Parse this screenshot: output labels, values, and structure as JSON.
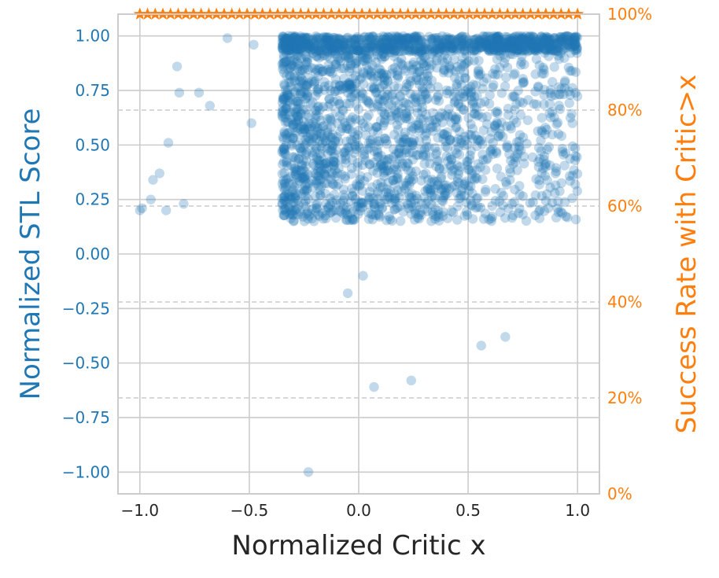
{
  "chart_data": {
    "type": "scatter",
    "title": "",
    "xlabel": "Normalized Critic x",
    "ylabel": "Normalized STL Score",
    "y2label": "Success Rate with Critic>x",
    "xlim": [
      -1.1,
      1.1
    ],
    "ylim": [
      -1.1,
      1.1
    ],
    "y2lim": [
      0,
      100
    ],
    "grid": true,
    "x_ticks": [
      "−1.0",
      "−0.5",
      "0.0",
      "0.5",
      "1.0"
    ],
    "x_tick_values": [
      -1.0,
      -0.5,
      0.0,
      0.5,
      1.0
    ],
    "y_ticks": [
      "1.00",
      "0.75",
      "0.50",
      "0.25",
      "0.00",
      "−0.25",
      "−0.50",
      "−0.75",
      "−1.00"
    ],
    "y_tick_values": [
      1.0,
      0.75,
      0.5,
      0.25,
      0.0,
      -0.25,
      -0.5,
      -0.75,
      -1.0
    ],
    "y2_ticks": [
      "100%",
      "80%",
      "60%",
      "40%",
      "20%",
      "0%"
    ],
    "y2_tick_values": [
      100,
      80,
      60,
      40,
      20,
      0
    ],
    "colors": {
      "scatter": "#1f77b4",
      "line": "#ff7f0e",
      "grid": "#cccccc",
      "text": "#262626"
    },
    "series": [
      {
        "name": "Normalized STL Score",
        "kind": "scatter",
        "axis": "left",
        "note": "Dense cluster of points spanning x in [-0.35, 1.0] and y in [0.15, 1.0]",
        "points": [
          [
            -1.0,
            0.2
          ],
          [
            -0.99,
            0.21
          ],
          [
            -0.95,
            0.25
          ],
          [
            -0.94,
            0.34
          ],
          [
            -0.91,
            0.37
          ],
          [
            -0.87,
            0.51
          ],
          [
            -0.88,
            0.2
          ],
          [
            -0.83,
            0.86
          ],
          [
            -0.82,
            0.74
          ],
          [
            -0.8,
            0.23
          ],
          [
            -0.73,
            0.74
          ],
          [
            -0.68,
            0.68
          ],
          [
            -0.49,
            0.6
          ],
          [
            -0.48,
            0.96
          ],
          [
            -0.6,
            0.99
          ],
          [
            -0.23,
            -1.0
          ],
          [
            -0.05,
            -0.18
          ],
          [
            0.02,
            -0.1
          ],
          [
            0.07,
            -0.61
          ],
          [
            0.24,
            -0.58
          ],
          [
            0.56,
            -0.42
          ],
          [
            0.67,
            -0.38
          ]
        ],
        "cluster": {
          "x_range": [
            -0.35,
            1.0
          ],
          "y_range": [
            0.15,
            1.0
          ],
          "count": 2600
        }
      },
      {
        "name": "Success Rate with Critic>x",
        "kind": "line",
        "marker": "star",
        "axis": "right",
        "x": [
          -1.0,
          -0.965,
          -0.93,
          -0.895,
          -0.86,
          -0.825,
          -0.79,
          -0.755,
          -0.72,
          -0.685,
          -0.65,
          -0.615,
          -0.58,
          -0.545,
          -0.51,
          -0.475,
          -0.44,
          -0.405,
          -0.37,
          -0.335,
          -0.3,
          -0.265,
          -0.23,
          -0.195,
          -0.16,
          -0.125,
          -0.09,
          -0.055,
          -0.02,
          0.015,
          0.05,
          0.085,
          0.12,
          0.155,
          0.19,
          0.225,
          0.26,
          0.295,
          0.33,
          0.365,
          0.4,
          0.435,
          0.47,
          0.505,
          0.54,
          0.575,
          0.61,
          0.645,
          0.68,
          0.715,
          0.75,
          0.785,
          0.82,
          0.855,
          0.89,
          0.925,
          0.96,
          1.0
        ],
        "values": [
          100,
          100,
          100,
          100,
          100,
          100,
          100,
          100,
          100,
          100,
          100,
          100,
          100,
          100,
          100,
          100,
          100,
          100,
          100,
          100,
          100,
          100,
          100,
          100,
          100,
          100,
          100,
          100,
          100,
          100,
          100,
          100,
          100,
          100,
          100,
          100,
          100,
          100,
          100,
          100,
          100,
          100,
          100,
          100,
          100,
          100,
          100,
          100,
          100,
          100,
          100,
          100,
          100,
          100,
          100,
          100,
          100,
          100
        ]
      }
    ]
  }
}
